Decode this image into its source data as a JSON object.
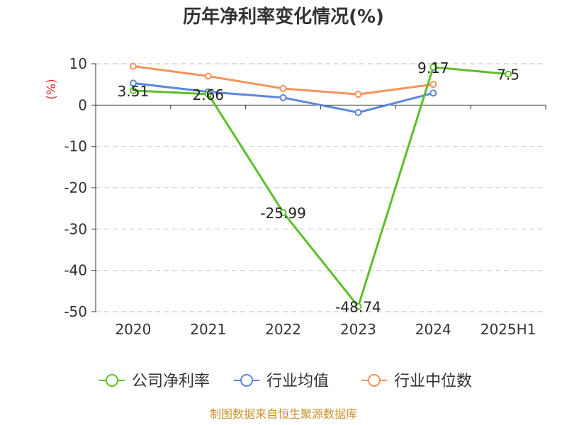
{
  "chart_data": {
    "type": "line",
    "title": "历年净利率变化情况(%)",
    "unit_label": "(%)",
    "categories": [
      "2020",
      "2021",
      "2022",
      "2023",
      "2024",
      "2025H1"
    ],
    "y_ticks": [
      "10",
      "0",
      "-10",
      "-20",
      "-30",
      "-40",
      "-50"
    ],
    "ylim": [
      -50,
      10
    ],
    "grid": "horizontal dashed",
    "legend_position": "bottom",
    "series": [
      {
        "name": "公司净利率",
        "color": "#5cbf27",
        "values": [
          3.51,
          2.66,
          -25.99,
          -48.74,
          9.17,
          7.5
        ],
        "labels": [
          "3.51",
          "2.66",
          "-25.99",
          "-48.74",
          "9.17",
          "7.5"
        ]
      },
      {
        "name": "行业均值",
        "color": "#5b86e0",
        "values": [
          5.3,
          3.2,
          1.8,
          -1.8,
          2.9,
          null
        ]
      },
      {
        "name": "行业中位数",
        "color": "#f6935c",
        "values": [
          9.4,
          7.0,
          4.0,
          2.6,
          5.0,
          null
        ]
      }
    ],
    "source": "制图数据来自恒生聚源数据库"
  }
}
